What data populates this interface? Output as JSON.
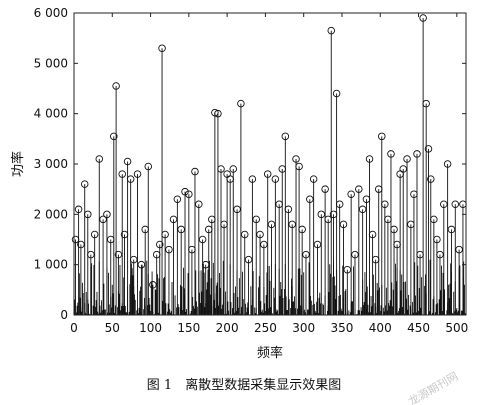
{
  "chart_data": {
    "type": "scatter",
    "style": "stem",
    "xlabel": "频率",
    "ylabel": "功率",
    "xlim": [
      0,
      512
    ],
    "ylim": [
      0,
      6000
    ],
    "xticks": [
      0,
      50,
      100,
      150,
      200,
      250,
      300,
      350,
      400,
      450,
      500
    ],
    "yticks": [
      0,
      1000,
      2000,
      3000,
      4000,
      5000,
      6000
    ],
    "ytick_labels": [
      "0",
      "1 000",
      "2 000",
      "3 000",
      "4 000",
      "5 000",
      "6 000"
    ],
    "grid": false,
    "marker": "open-circle",
    "x": [
      2,
      6,
      9,
      14,
      18,
      22,
      27,
      33,
      38,
      43,
      48,
      52,
      55,
      58,
      63,
      66,
      70,
      74,
      78,
      83,
      88,
      93,
      97,
      103,
      108,
      112,
      115,
      119,
      124,
      130,
      135,
      140,
      145,
      150,
      154,
      158,
      163,
      168,
      172,
      176,
      180,
      184,
      188,
      192,
      196,
      200,
      204,
      208,
      213,
      218,
      223,
      228,
      233,
      238,
      243,
      248,
      253,
      258,
      263,
      268,
      272,
      276,
      280,
      285,
      290,
      294,
      298,
      303,
      308,
      313,
      318,
      323,
      328,
      332,
      336,
      339,
      343,
      347,
      352,
      357,
      362,
      367,
      372,
      377,
      382,
      386,
      390,
      394,
      398,
      402,
      406,
      410,
      414,
      418,
      422,
      426,
      430,
      435,
      440,
      444,
      448,
      452,
      456,
      460,
      463,
      466,
      470,
      474,
      478,
      483,
      488,
      493,
      498,
      503,
      508
    ],
    "y": [
      1500,
      2100,
      1400,
      2600,
      2000,
      1200,
      1600,
      3100,
      1900,
      2000,
      1500,
      3550,
      4550,
      1200,
      2800,
      1600,
      3050,
      2700,
      1100,
      2800,
      1000,
      1700,
      2950,
      600,
      1200,
      1400,
      5300,
      1600,
      1300,
      1900,
      2300,
      1700,
      2450,
      2400,
      1300,
      2850,
      2200,
      1500,
      1000,
      1700,
      1900,
      4020,
      4000,
      2900,
      1800,
      2800,
      2700,
      2900,
      2100,
      4200,
      1600,
      1100,
      2700,
      1900,
      1600,
      1400,
      2800,
      1800,
      2700,
      2200,
      2900,
      3550,
      2100,
      1800,
      3100,
      2950,
      1700,
      1200,
      2300,
      2700,
      1400,
      2000,
      2500,
      1900,
      5650,
      2000,
      4400,
      2200,
      1800,
      900,
      2400,
      1200,
      2500,
      2100,
      2300,
      3100,
      1600,
      1100,
      2500,
      3550,
      2200,
      1900,
      3200,
      1700,
      1400,
      2800,
      2900,
      3100,
      1800,
      2400,
      3200,
      1200,
      5900,
      4200,
      3300,
      2700,
      1900,
      1500,
      1200,
      2200,
      3000,
      1700,
      2200,
      1300,
      2200
    ]
  },
  "caption": "图 1　离散型数据采集显示效果图",
  "watermark": "龙源期刊网"
}
